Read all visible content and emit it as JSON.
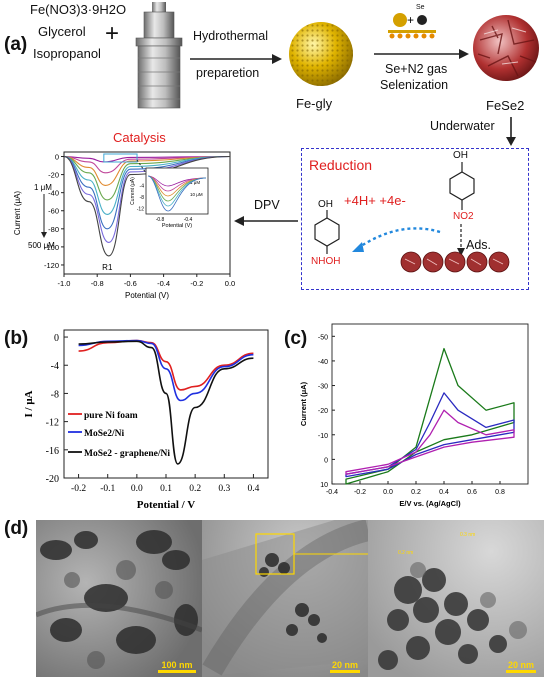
{
  "panel_a": {
    "label": "(a)",
    "reagents": [
      "Fe(NO3)3·9H2O",
      "Glycerol",
      "Isopropanol"
    ],
    "plus": "+",
    "step1": [
      "Hydrothermal",
      "preparetion"
    ],
    "product1": "Fe-gly",
    "step2": [
      "Se+N2 gas",
      "Selenization"
    ],
    "se_label": "Se",
    "product2": "FeSe2",
    "underwater": "Underwater",
    "reduction_title": "Reduction",
    "reaction": "+4H+ +4e-",
    "ads": "Ads.",
    "oh_top": "OH",
    "no2": "NO2",
    "oh_bottom": "OH",
    "nhoh": "NHOH",
    "dpv": "DPV",
    "catalysis_title": "Catalysis",
    "chart_a": {
      "ylabel": "Current (μA)",
      "xlabel": "Potential (V)",
      "yticks": [
        "0",
        "-20",
        "-40",
        "-60",
        "-80",
        "-100",
        "-120"
      ],
      "xticks": [
        "-1.0",
        "-0.8",
        "-0.6",
        "-0.4",
        "-0.2",
        "0.0"
      ],
      "conc_top": "1 μM",
      "conc_bottom": "500 μM",
      "peak_label": "R1",
      "inset": {
        "ylabel": "Current (μA)",
        "xlabel": "Potential  (V)",
        "yticks": [
          "-4",
          "-8",
          "-12"
        ],
        "xticks": [
          "-0.8",
          "-0.4"
        ],
        "conc_top": "1 μM",
        "conc_bottom": "10 μM"
      }
    }
  },
  "panel_b": {
    "label": "(b)",
    "ylabel": "I / μA",
    "xlabel": "Potential / V",
    "yticks": [
      "0",
      "-4",
      "-8",
      "-12",
      "-16",
      "-20"
    ],
    "xticks": [
      "-0.2",
      "-0.1",
      "0.0",
      "0.1",
      "0.2",
      "0.3",
      "0.4"
    ],
    "legend": [
      "pure Ni foam",
      "MoSe2/Ni",
      "MoSe2 - graphene/Ni"
    ],
    "colors": [
      "#e02020",
      "#2030e0",
      "#111111"
    ]
  },
  "panel_c": {
    "label": "(c)",
    "ylabel": "Current (μA)",
    "xlabel": "E/V vs. (Ag/AgCl)",
    "yticks": [
      "-50",
      "-40",
      "-30",
      "-20",
      "-10",
      "0",
      "10"
    ],
    "xticks": [
      "-0.4",
      "-0.2",
      "0.0",
      "0.2",
      "0.4",
      "0.6",
      "0.8"
    ],
    "colors": [
      "#1a7a1a",
      "#2a2ac0",
      "#b020b0"
    ]
  },
  "panel_d": {
    "label": "(d)",
    "scale_bars": [
      "100 nm",
      "20 nm",
      "20 nm"
    ],
    "lattice_1": "0.2 nm",
    "lattice_2": "0.3 nm"
  },
  "chart_data": [
    {
      "type": "line",
      "title": "Catalysis",
      "xlabel": "Potential (V)",
      "ylabel": "Current (μA)",
      "xlim": [
        -1.0,
        0.0
      ],
      "ylim": [
        -130,
        5
      ],
      "series": [
        {
          "values": [
            [
              -1.0,
              0
            ],
            [
              -0.85,
              -2
            ],
            [
              -0.76,
              -6
            ],
            [
              -0.6,
              -1
            ],
            [
              0.0,
              0
            ]
          ]
        },
        {
          "values": [
            [
              -1.0,
              0
            ],
            [
              -0.85,
              -6
            ],
            [
              -0.75,
              -18
            ],
            [
              -0.6,
              -3
            ],
            [
              0.0,
              0
            ]
          ]
        },
        {
          "values": [
            [
              -1.0,
              0
            ],
            [
              -0.85,
              -12
            ],
            [
              -0.75,
              -32
            ],
            [
              -0.6,
              -5
            ],
            [
              0.0,
              0
            ]
          ]
        },
        {
          "values": [
            [
              -1.0,
              0
            ],
            [
              -0.85,
              -18
            ],
            [
              -0.74,
              -48
            ],
            [
              -0.6,
              -8
            ],
            [
              0.0,
              0
            ]
          ]
        },
        {
          "values": [
            [
              -1.0,
              0
            ],
            [
              -0.85,
              -26
            ],
            [
              -0.74,
              -64
            ],
            [
              -0.6,
              -11
            ],
            [
              0.0,
              0
            ]
          ]
        },
        {
          "values": [
            [
              -1.0,
              0
            ],
            [
              -0.85,
              -34
            ],
            [
              -0.74,
              -80
            ],
            [
              -0.6,
              -14
            ],
            [
              0.0,
              0
            ]
          ]
        },
        {
          "values": [
            [
              -1.0,
              0
            ],
            [
              -0.85,
              -42
            ],
            [
              -0.73,
              -95
            ],
            [
              -0.6,
              -17
            ],
            [
              0.0,
              0
            ]
          ]
        },
        {
          "values": [
            [
              -1.0,
              0
            ],
            [
              -0.85,
              -50
            ],
            [
              -0.73,
              -110
            ],
            [
              -0.6,
              -20
            ],
            [
              0.0,
              0
            ]
          ]
        }
      ]
    },
    {
      "type": "line",
      "xlabel": "Potential / V",
      "ylabel": "I / μA",
      "xlim": [
        -0.25,
        0.45
      ],
      "ylim": [
        -20,
        1
      ],
      "series": [
        {
          "name": "pure Ni foam",
          "values": [
            [
              -0.2,
              -2.0
            ],
            [
              -0.1,
              -0.8
            ],
            [
              0.0,
              -0.5
            ],
            [
              0.05,
              -0.8
            ],
            [
              0.1,
              -3.5
            ],
            [
              0.15,
              -7.5
            ],
            [
              0.2,
              -7.0
            ],
            [
              0.3,
              -4.0
            ],
            [
              0.4,
              -2.3
            ]
          ]
        },
        {
          "name": "MoSe2/Ni",
          "values": [
            [
              -0.2,
              -1.2
            ],
            [
              -0.1,
              -0.6
            ],
            [
              0.0,
              -0.5
            ],
            [
              0.05,
              -0.9
            ],
            [
              0.1,
              -4.5
            ],
            [
              0.15,
              -9.0
            ],
            [
              0.2,
              -8.0
            ],
            [
              0.3,
              -4.2
            ],
            [
              0.4,
              -2.5
            ]
          ]
        },
        {
          "name": "MoSe2 - graphene/Ni",
          "values": [
            [
              -0.2,
              -1.0
            ],
            [
              -0.1,
              -0.7
            ],
            [
              0.0,
              -0.6
            ],
            [
              0.05,
              -1.5
            ],
            [
              0.1,
              -8.0
            ],
            [
              0.14,
              -18.0
            ],
            [
              0.2,
              -10.0
            ],
            [
              0.3,
              -4.5
            ],
            [
              0.4,
              -3.0
            ]
          ]
        }
      ]
    },
    {
      "type": "line",
      "xlabel": "E/V vs. (Ag/AgCl)",
      "ylabel": "Current (μA)",
      "xlim": [
        -0.4,
        1.0
      ],
      "ylim": [
        -55,
        10
      ],
      "series": [
        {
          "values": [
            [
              -0.3,
              8
            ],
            [
              0.0,
              4
            ],
            [
              0.2,
              -5
            ],
            [
              0.3,
              -25
            ],
            [
              0.4,
              -45
            ],
            [
              0.5,
              -30
            ],
            [
              0.7,
              -20
            ],
            [
              0.9,
              -23
            ],
            [
              0.9,
              -15
            ],
            [
              0.6,
              -10
            ],
            [
              0.4,
              -8
            ],
            [
              0.2,
              -3
            ],
            [
              0.0,
              5
            ],
            [
              -0.3,
              10
            ]
          ]
        },
        {
          "values": [
            [
              -0.3,
              6
            ],
            [
              0.0,
              3
            ],
            [
              0.2,
              -4
            ],
            [
              0.3,
              -15
            ],
            [
              0.4,
              -27
            ],
            [
              0.5,
              -20
            ],
            [
              0.7,
              -13
            ],
            [
              0.9,
              -16
            ],
            [
              0.9,
              -11
            ],
            [
              0.6,
              -8
            ],
            [
              0.4,
              -6
            ],
            [
              0.2,
              -2
            ],
            [
              0.0,
              4
            ],
            [
              -0.3,
              7
            ]
          ]
        },
        {
          "values": [
            [
              -0.3,
              5
            ],
            [
              0.0,
              2
            ],
            [
              0.2,
              -3
            ],
            [
              0.3,
              -10
            ],
            [
              0.4,
              -20
            ],
            [
              0.5,
              -15
            ],
            [
              0.7,
              -10
            ],
            [
              0.9,
              -12
            ],
            [
              0.9,
              -9
            ],
            [
              0.6,
              -7
            ],
            [
              0.4,
              -5
            ],
            [
              0.2,
              -1
            ],
            [
              0.0,
              3
            ],
            [
              -0.3,
              6
            ]
          ]
        }
      ]
    }
  ]
}
